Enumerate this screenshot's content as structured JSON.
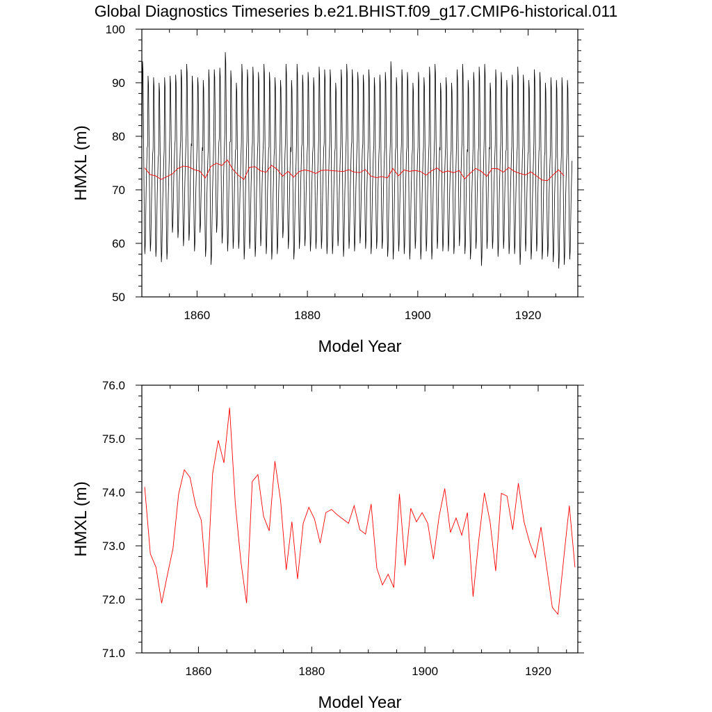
{
  "title": "Global Diagnostics Timeseries b.e21.BHIST.f09_g17.CMIP6-historical.011",
  "chart_data": [
    {
      "type": "line",
      "xlabel": "Model Year",
      "ylabel": "HMXL (m)",
      "xlim": [
        1850,
        1929
      ],
      "ylim": [
        50,
        100
      ],
      "xticks": [
        1860,
        1880,
        1900,
        1920
      ],
      "xtick_labels": [
        "1860",
        "1880",
        "1900",
        "1920"
      ],
      "yticks": [
        50,
        60,
        70,
        80,
        90,
        100
      ],
      "ytick_labels": [
        "50",
        "60",
        "70",
        "80",
        "90",
        "100"
      ],
      "grid": false,
      "legend": "none",
      "series": [
        {
          "kind": "monthly",
          "color": "#000000",
          "annual_max": [
            94,
            91.3,
            91,
            90,
            91,
            91.3,
            91.5,
            92.5,
            93.5,
            91.3,
            91,
            90.5,
            92.5,
            92.5,
            92.8,
            95.7,
            92.3,
            90,
            93.5,
            92.5,
            93,
            92,
            93.5,
            92,
            91,
            90.5,
            93.5,
            90.5,
            93.5,
            91.5,
            92,
            91,
            93,
            92.5,
            92.5,
            90,
            92.5,
            93.5,
            92.5,
            92,
            91.5,
            92.5,
            91,
            91.5,
            92,
            94,
            91,
            92.5,
            92,
            90,
            92,
            91,
            93,
            93.5,
            90,
            91,
            90,
            92.5,
            93.5,
            90.5,
            92,
            93,
            93.5,
            90,
            92.5,
            92,
            90.5,
            91.5,
            93,
            91.5,
            90.5,
            92.5,
            92,
            90,
            91,
            90.5,
            91,
            90.5
          ],
          "annual_min": [
            58,
            58.5,
            57.5,
            56.5,
            57,
            62,
            61,
            59.5,
            60.5,
            58.5,
            62,
            57.5,
            56,
            62,
            60,
            58.5,
            59,
            59,
            57,
            59,
            57.5,
            59.5,
            58,
            57,
            58,
            61,
            59,
            57,
            59,
            59.5,
            58.5,
            59,
            59,
            58,
            58,
            59.5,
            57.5,
            59,
            58.5,
            60,
            59,
            58,
            59,
            59,
            57.5,
            57,
            58.5,
            58,
            57,
            59,
            57,
            58.5,
            57,
            59,
            58.5,
            58.5,
            58,
            59.5,
            58,
            57,
            59,
            55.8,
            59,
            59,
            57.5,
            59,
            58,
            58,
            56,
            58.5,
            57,
            58.5,
            57,
            57.5,
            56.5,
            55.3,
            56,
            57
          ]
        },
        {
          "kind": "annual_mean",
          "color": "#ff0000",
          "values": [
            74.1,
            72.85,
            72.6,
            71.93,
            72.45,
            72.95,
            73.97,
            74.42,
            74.28,
            73.76,
            73.48,
            72.22,
            74.35,
            74.97,
            74.55,
            75.58,
            73.8,
            72.7,
            71.93,
            74.2,
            74.33,
            73.55,
            73.28,
            74.58,
            73.85,
            72.55,
            73.45,
            72.38,
            73.42,
            73.72,
            73.5,
            73.05,
            73.62,
            73.68,
            73.58,
            73.5,
            73.42,
            73.75,
            73.3,
            73.22,
            73.78,
            72.58,
            72.27,
            72.47,
            72.22,
            73.97,
            72.63,
            73.7,
            73.45,
            73.62,
            73.42,
            72.75,
            73.55,
            74.07,
            73.25,
            73.52,
            73.2,
            73.62,
            72.05,
            73.1,
            73.99,
            73.45,
            72.53,
            73.98,
            73.93,
            73.3,
            74.17,
            73.45,
            73.06,
            72.78,
            73.35,
            72.6,
            71.85,
            71.72,
            72.75,
            73.75,
            72.6
          ]
        }
      ]
    },
    {
      "type": "line",
      "xlabel": "Model Year",
      "ylabel": "HMXL (m)",
      "xlim": [
        1850,
        1927
      ],
      "ylim": [
        71,
        76
      ],
      "xticks": [
        1860,
        1880,
        1900,
        1920
      ],
      "xtick_labels": [
        "1860",
        "1880",
        "1900",
        "1920"
      ],
      "yticks": [
        71,
        72,
        73,
        74,
        75,
        76
      ],
      "ytick_labels": [
        "71.0",
        "72.0",
        "73.0",
        "74.0",
        "75.0",
        "76.0"
      ],
      "grid": false,
      "legend": "none",
      "series": [
        {
          "kind": "annual_mean",
          "color": "#ff0000",
          "values": [
            74.1,
            72.85,
            72.6,
            71.93,
            72.45,
            72.95,
            73.97,
            74.42,
            74.28,
            73.76,
            73.48,
            72.22,
            74.35,
            74.97,
            74.55,
            75.58,
            73.8,
            72.7,
            71.93,
            74.2,
            74.33,
            73.55,
            73.28,
            74.58,
            73.85,
            72.55,
            73.45,
            72.38,
            73.42,
            73.72,
            73.5,
            73.05,
            73.62,
            73.68,
            73.58,
            73.5,
            73.42,
            73.75,
            73.3,
            73.22,
            73.78,
            72.58,
            72.27,
            72.47,
            72.22,
            73.97,
            72.63,
            73.7,
            73.45,
            73.62,
            73.42,
            72.75,
            73.55,
            74.07,
            73.25,
            73.52,
            73.2,
            73.62,
            72.05,
            73.1,
            73.99,
            73.45,
            72.53,
            73.98,
            73.93,
            73.3,
            74.17,
            73.45,
            73.06,
            72.78,
            73.35,
            72.6,
            71.85,
            71.72,
            72.75,
            73.75,
            72.6
          ]
        }
      ]
    }
  ]
}
